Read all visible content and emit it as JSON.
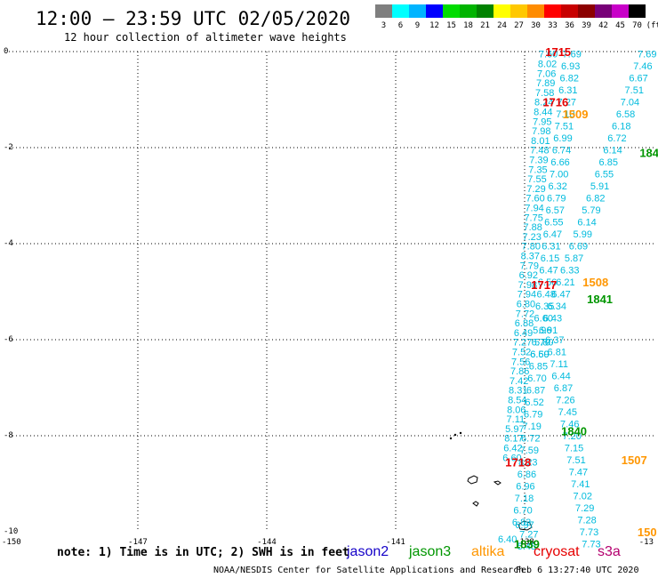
{
  "header": {
    "title": "12:00 – 23:59 UTC 02/05/2020",
    "subtitle": "12 hour collection of altimeter wave heights"
  },
  "colorbar": {
    "labels": [
      "3",
      "6",
      "9",
      "12",
      "15",
      "18",
      "21",
      "24",
      "27",
      "30",
      "33",
      "36",
      "39",
      "42",
      "45",
      "70",
      "(ft)"
    ],
    "colors": [
      "#7f7f7f",
      "#00ffff",
      "#00b4ff",
      "#0000ff",
      "#00dc00",
      "#00b400",
      "#008200",
      "#ffff00",
      "#ffc800",
      "#ff8c00",
      "#ff0000",
      "#c80000",
      "#8c0000",
      "#780078",
      "#c800c8",
      "#000000"
    ]
  },
  "footer": {
    "note": "note: 1) Time is in UTC; 2) SWH is in feet",
    "credit": "NOAA/NESDIS Center for Satellite Applications and Research",
    "timestamp": "Feb  6 13:27:40 UTC 2020"
  },
  "legend": [
    {
      "name": "jason2",
      "color": "#1400c8"
    },
    {
      "name": "jason3",
      "color": "#009600"
    },
    {
      "name": "altika",
      "color": "#ff9600"
    },
    {
      "name": "cryosat",
      "color": "#e60000"
    },
    {
      "name": "s3a",
      "color": "#b4006e"
    }
  ],
  "chart_data": {
    "type": "scatter",
    "xlim": [
      -150,
      -135
    ],
    "ylim": [
      -10,
      0
    ],
    "x_ticks": [
      -147,
      -144,
      -141,
      -138
    ],
    "x_tick_labels": [
      "-150",
      "-147",
      "-144",
      "-141",
      "-138",
      "-13"
    ],
    "y_tick_labels": [
      "0",
      "-2",
      "-4",
      "-6",
      "-8",
      "-10"
    ],
    "grid": true,
    "value_color": "#00bbdd",
    "series": [
      {
        "x": [
          -137.45,
          -137.47,
          -137.49,
          -137.51,
          -137.53,
          -137.55,
          -137.57,
          -137.59,
          -137.61,
          -137.63,
          -137.65,
          -137.67,
          -137.69,
          -137.71,
          -137.73,
          -137.75,
          -137.77,
          -137.79,
          -137.81,
          -137.83,
          -137.85,
          -137.87,
          -137.89,
          -137.91,
          -137.93,
          -137.95,
          -137.97,
          -137.99,
          -138.01,
          -138.03,
          -138.05,
          -138.07,
          -138.09,
          -138.11,
          -138.13,
          -138.15,
          -138.17,
          -138.19,
          -138.21,
          -138.23,
          -138.25,
          -138.27,
          -138.29
        ],
        "y": [
          -0.05,
          -0.25,
          -0.45,
          -0.65,
          -0.85,
          -1.05,
          -1.25,
          -1.45,
          -1.65,
          -1.85,
          -2.05,
          -2.25,
          -2.45,
          -2.65,
          -2.85,
          -3.05,
          -3.25,
          -3.45,
          -3.65,
          -3.85,
          -4.05,
          -4.25,
          -4.45,
          -4.65,
          -4.85,
          -5.05,
          -5.25,
          -5.45,
          -5.65,
          -5.85,
          -6.05,
          -6.25,
          -6.45,
          -6.65,
          -6.85,
          -7.05,
          -7.25,
          -7.45,
          -7.65,
          -7.85,
          -8.05,
          -8.25,
          -8.45
        ],
        "values": [
          "7.60",
          "8.02",
          "7.06",
          "7.89",
          "7.58",
          "8.24",
          "8.44",
          "7.95",
          "7.98",
          "8.01",
          "7.48",
          "7.39",
          "7.35",
          "7.55",
          "7.29",
          "7.60",
          "7.94",
          "7.75",
          "7.88",
          "7.23",
          "7.80",
          "8.37",
          "7.79",
          "6.92",
          "7.98",
          "7.94",
          "6.80",
          "7.72",
          "6.88",
          "6.49",
          "7.27",
          "7.52",
          "7.56",
          "7.86",
          "7.42",
          "8.31",
          "8.54",
          "8.06",
          "7.11",
          "5.97",
          "8.17",
          "6.42",
          "6.60"
        ]
      },
      {
        "x": [
          -136.9,
          -136.93,
          -136.96,
          -136.99,
          -137.02,
          -137.05,
          -137.08,
          -137.11,
          -137.14,
          -137.17,
          -137.2,
          -137.23,
          -137.26,
          -137.29,
          -137.32,
          -137.35,
          -137.38,
          -137.41,
          -137.44,
          -137.47,
          -137.5,
          -137.53,
          -137.56,
          -137.59,
          -137.62,
          -137.65,
          -137.68,
          -137.71,
          -137.74,
          -137.77,
          -137.8,
          -137.83,
          -137.86,
          -137.89,
          -137.92,
          -137.95,
          -137.98,
          -138.01,
          -138.04,
          -138.07
        ],
        "y": [
          -0.05,
          -0.3,
          -0.55,
          -0.8,
          -1.05,
          -1.3,
          -1.55,
          -1.8,
          -2.05,
          -2.3,
          -2.55,
          -2.8,
          -3.05,
          -3.3,
          -3.55,
          -3.8,
          -4.05,
          -4.3,
          -4.55,
          -4.8,
          -5.05,
          -5.3,
          -5.55,
          -5.8,
          -6.05,
          -6.3,
          -6.55,
          -6.8,
          -7.05,
          -7.3,
          -7.55,
          -7.8,
          -8.05,
          -8.3,
          -8.55,
          -8.8,
          -9.05,
          -9.3,
          -9.55,
          -9.8
        ],
        "values": [
          "7.69",
          "6.93",
          "6.82",
          "6.31",
          "7.27",
          "7.10",
          "7.51",
          "6.99",
          "6.74",
          "6.66",
          "7.00",
          "6.32",
          "6.79",
          "6.57",
          "6.55",
          "6.47",
          "6.31",
          "6.15",
          "6.47",
          "6.56",
          "6.48",
          "6.35",
          "6.60",
          "5.96",
          "6.70",
          "6.50",
          "6.85",
          "6.70",
          "6.87",
          "6.52",
          "6.79",
          "7.19",
          "6.72",
          "7.59",
          "8.23",
          "6.86",
          "6.96",
          "7.18",
          "6.70",
          "6.83"
        ]
      },
      {
        "x": [
          -135.15,
          -135.25,
          -135.35,
          -135.45,
          -135.55,
          -135.65,
          -135.75,
          -135.85,
          -135.95,
          -136.05,
          -136.15,
          -136.25,
          -136.35,
          -136.45,
          -136.55,
          -136.65,
          -136.75,
          -136.85,
          -136.95,
          -137.05,
          -137.15,
          -137.25,
          -137.35,
          -137.45,
          -137.55,
          -137.65
        ],
        "y": [
          -0.05,
          -0.3,
          -0.55,
          -0.8,
          -1.05,
          -1.3,
          -1.55,
          -1.8,
          -2.05,
          -2.3,
          -2.55,
          -2.8,
          -3.05,
          -3.3,
          -3.55,
          -3.8,
          -4.05,
          -4.3,
          -4.55,
          -4.8,
          -5.05,
          -5.3,
          -5.55,
          -5.8,
          -6.05,
          -6.3
        ],
        "values": [
          "7.69",
          "7.46",
          "6.67",
          "7.51",
          "7.04",
          "6.58",
          "6.18",
          "6.72",
          "6.14",
          "6.85",
          "6.55",
          "5.91",
          "6.82",
          "5.79",
          "6.14",
          "5.99",
          "6.69",
          "5.87",
          "6.33",
          "6.21",
          "6.47",
          "6.34",
          "6.43",
          "6.91",
          "5.80",
          "6.69"
        ]
      },
      {
        "x": [
          -137.3,
          -137.25,
          -137.2,
          -137.15,
          -137.1,
          -137.05,
          -137.0,
          -136.95,
          -136.9,
          -136.85,
          -136.8,
          -136.75,
          -136.7,
          -136.65,
          -136.6,
          -136.55,
          -136.5,
          -136.45
        ],
        "y": [
          -6.0,
          -6.25,
          -6.5,
          -6.75,
          -7.0,
          -7.25,
          -7.5,
          -7.75,
          -8.0,
          -8.25,
          -8.5,
          -8.75,
          -9.0,
          -9.25,
          -9.5,
          -9.75,
          -10.0,
          -10.25
        ],
        "values": [
          "6.37",
          "6.81",
          "7.11",
          "6.44",
          "6.87",
          "7.26",
          "7.45",
          "7.46",
          "7.20",
          "7.15",
          "7.51",
          "7.47",
          "7.41",
          "7.02",
          "7.29",
          "7.28",
          "7.73",
          "7.73"
        ]
      }
    ],
    "extra_values": [
      {
        "x": -138.0,
        "y": -9.85,
        "value": "6.97"
      },
      {
        "x": -137.9,
        "y": -10.05,
        "value": "7.27"
      },
      {
        "x": -138.4,
        "y": -10.15,
        "value": "6.40"
      },
      {
        "x": -137.95,
        "y": -10.3,
        "value": "5.48"
      }
    ],
    "time_labels": [
      {
        "text": "1715",
        "x": -137.22,
        "y": 0.0,
        "sat": "cryosat"
      },
      {
        "text": "1716",
        "x": -137.28,
        "y": -1.05,
        "sat": "cryosat"
      },
      {
        "text": "1509",
        "x": -136.82,
        "y": -1.3,
        "sat": "altika"
      },
      {
        "text": "184",
        "x": -135.1,
        "y": -2.1,
        "sat": "jason3"
      },
      {
        "text": "1717",
        "x": -137.55,
        "y": -4.85,
        "sat": "cryosat"
      },
      {
        "text": "1508",
        "x": -136.35,
        "y": -4.8,
        "sat": "altika"
      },
      {
        "text": "1841",
        "x": -136.25,
        "y": -5.15,
        "sat": "jason3"
      },
      {
        "text": "1840",
        "x": -136.85,
        "y": -7.9,
        "sat": "jason3"
      },
      {
        "text": "1718",
        "x": -138.15,
        "y": -8.55,
        "sat": "cryosat"
      },
      {
        "text": "1507",
        "x": -135.45,
        "y": -8.5,
        "sat": "altika"
      },
      {
        "text": "1839",
        "x": -137.95,
        "y": -10.25,
        "sat": "jason3"
      },
      {
        "text": "150",
        "x": -135.15,
        "y": -10.0,
        "sat": "altika"
      }
    ]
  }
}
